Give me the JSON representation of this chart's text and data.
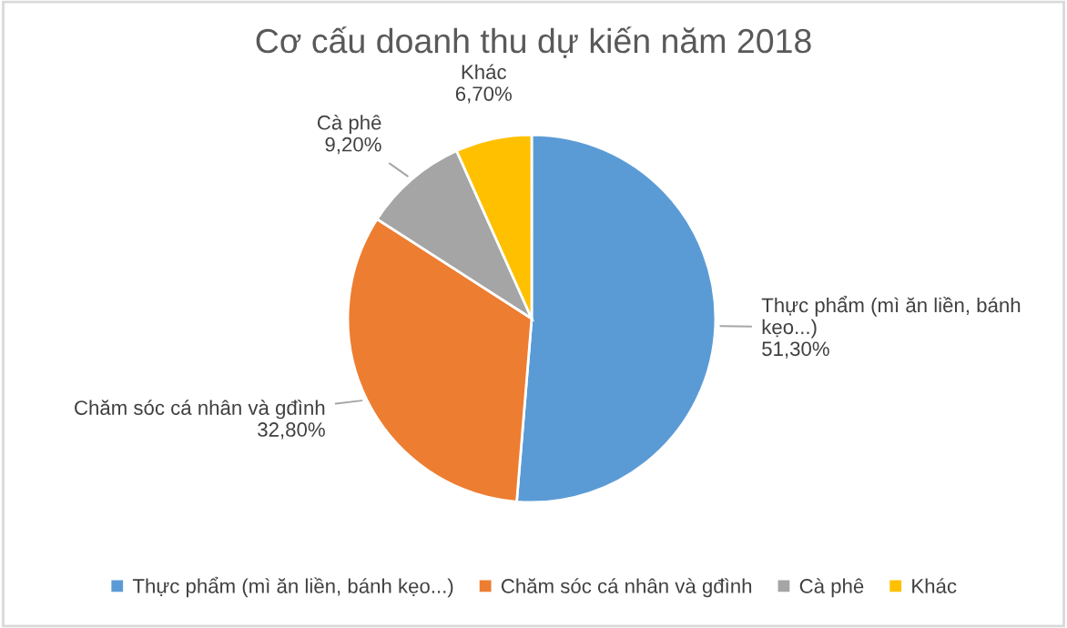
{
  "chart_data": {
    "type": "pie",
    "title": "Cơ cấu doanh thu dự kiến năm 2018",
    "categories": [
      "Thực phẩm (mì ăn liền, bánh kẹo...)",
      "Chăm sóc cá nhân và gđình",
      "Cà phê",
      "Khác"
    ],
    "values": [
      51.3,
      32.8,
      9.2,
      6.7
    ],
    "value_labels": [
      "51,30%",
      "32,80%",
      "9,20%",
      "6,70%"
    ],
    "colors": [
      "#5b9bd5",
      "#ed7d31",
      "#a5a5a5",
      "#ffc000"
    ],
    "legend": "bottom"
  }
}
